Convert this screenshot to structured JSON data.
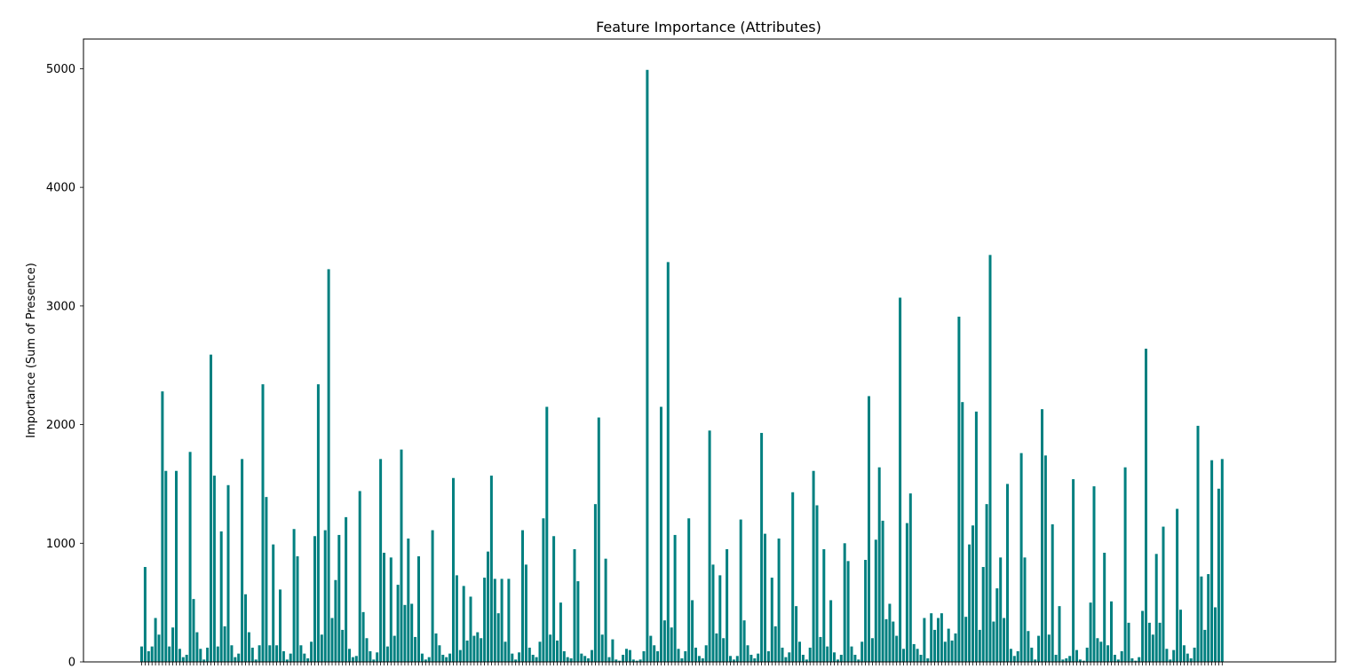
{
  "chart_data": {
    "type": "bar",
    "title": "Feature Importance (Attributes)",
    "xlabel": "",
    "ylabel": "Importance (Sum of Presence)",
    "ylim": [
      0,
      5250
    ],
    "yticks": [
      0,
      1000,
      2000,
      3000,
      4000,
      5000
    ],
    "grid": false,
    "color": "#008080",
    "values": [
      130,
      800,
      90,
      130,
      370,
      230,
      2280,
      1610,
      130,
      290,
      1610,
      110,
      40,
      60,
      1770,
      530,
      250,
      110,
      20,
      120,
      2590,
      1570,
      130,
      1100,
      300,
      1490,
      140,
      40,
      70,
      1710,
      570,
      250,
      120,
      20,
      140,
      2340,
      1390,
      140,
      990,
      140,
      610,
      90,
      20,
      70,
      1120,
      890,
      140,
      70,
      30,
      170,
      1060,
      2340,
      230,
      1110,
      3310,
      370,
      690,
      1070,
      270,
      1220,
      110,
      40,
      50,
      1440,
      420,
      200,
      90,
      20,
      80,
      1710,
      920,
      130,
      880,
      220,
      650,
      1790,
      480,
      1040,
      490,
      210,
      890,
      70,
      20,
      40,
      1110,
      240,
      140,
      60,
      40,
      70,
      1550,
      730,
      100,
      640,
      180,
      550,
      220,
      250,
      200,
      710,
      930,
      1570,
      700,
      410,
      700,
      170,
      700,
      70,
      20,
      80,
      1110,
      820,
      120,
      60,
      40,
      170,
      1210,
      2150,
      230,
      1060,
      180,
      500,
      90,
      40,
      30,
      950,
      680,
      70,
      50,
      30,
      100,
      1330,
      2060,
      230,
      870,
      40,
      190,
      20,
      10,
      60,
      110,
      100,
      20,
      10,
      20,
      90,
      4990,
      220,
      140,
      90,
      2150,
      350,
      3370,
      290,
      1070,
      110,
      30,
      90,
      1210,
      520,
      120,
      50,
      30,
      140,
      1950,
      820,
      240,
      730,
      200,
      950,
      50,
      20,
      50,
      1200,
      350,
      140,
      60,
      30,
      70,
      1930,
      1080,
      90,
      710,
      300,
      1040,
      120,
      40,
      80,
      1430,
      470,
      170,
      60,
      20,
      120,
      1610,
      1320,
      210,
      950,
      130,
      520,
      80,
      20,
      60,
      1000,
      850,
      130,
      60,
      20,
      170,
      860,
      2240,
      200,
      1030,
      1640,
      1190,
      360,
      490,
      340,
      220,
      3070,
      110,
      1170,
      1420,
      150,
      110,
      60,
      370,
      30,
      410,
      270,
      370,
      410,
      170,
      280,
      180,
      240,
      2910,
      2190,
      380,
      990,
      1150,
      2110,
      270,
      800,
      1330,
      3430,
      340,
      620,
      880,
      370,
      1500,
      110,
      50,
      90,
      1760,
      880,
      260,
      120,
      20,
      220,
      2130,
      1740,
      230,
      1160,
      60,
      470,
      20,
      30,
      50,
      1540,
      100,
      20,
      10,
      120,
      500,
      1480,
      200,
      170,
      920,
      140,
      510,
      60,
      20,
      90,
      1640,
      330,
      30,
      10,
      40,
      430,
      2640,
      330,
      230,
      910,
      330,
      1140,
      110,
      20,
      100,
      1290,
      440,
      140,
      70,
      30,
      120,
      1990,
      720,
      270,
      740,
      1700,
      460,
      1460,
      1710
    ]
  }
}
